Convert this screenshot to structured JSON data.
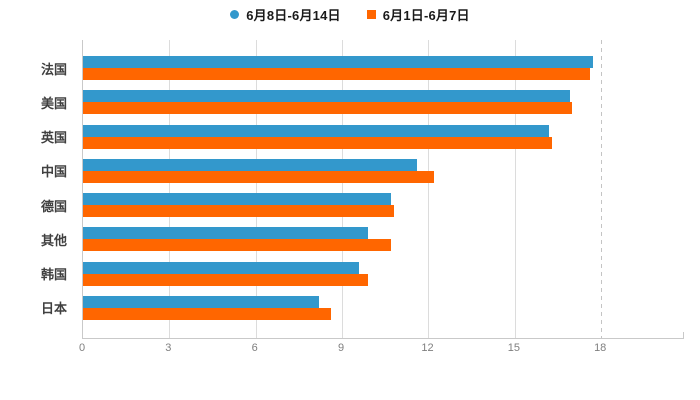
{
  "colors": {
    "series_blue": "#3398CC",
    "series_orange": "#FF6600",
    "axis_line": "#C9C9C9",
    "gridline": "#DCDCDC",
    "tick_label": "#7F7F7F",
    "category_label": "#404040",
    "background": "#FFFFFF"
  },
  "chart_data": {
    "type": "bar",
    "orientation": "horizontal",
    "title": "",
    "xlabel": "",
    "ylabel": "",
    "categories": [
      "法国",
      "美国",
      "英国",
      "中国",
      "德国",
      "其他",
      "韩国",
      "日本"
    ],
    "series": [
      {
        "name": "6月8日-6月14日",
        "color": "#3398CC",
        "marker": "circle",
        "values": [
          17.7,
          16.9,
          16.2,
          11.6,
          10.7,
          9.9,
          9.6,
          8.2
        ]
      },
      {
        "name": "6月1日-6月7日",
        "color": "#FF6600",
        "marker": "square",
        "values": [
          17.6,
          17.0,
          16.3,
          12.2,
          10.8,
          10.7,
          9.9,
          8.6
        ]
      }
    ],
    "xticks": [
      0,
      3,
      6,
      9,
      12,
      15,
      18
    ],
    "xlim": [
      0,
      20.9
    ],
    "grid": true,
    "dashed_gridline_at": 18,
    "legend_position": "top-center"
  }
}
